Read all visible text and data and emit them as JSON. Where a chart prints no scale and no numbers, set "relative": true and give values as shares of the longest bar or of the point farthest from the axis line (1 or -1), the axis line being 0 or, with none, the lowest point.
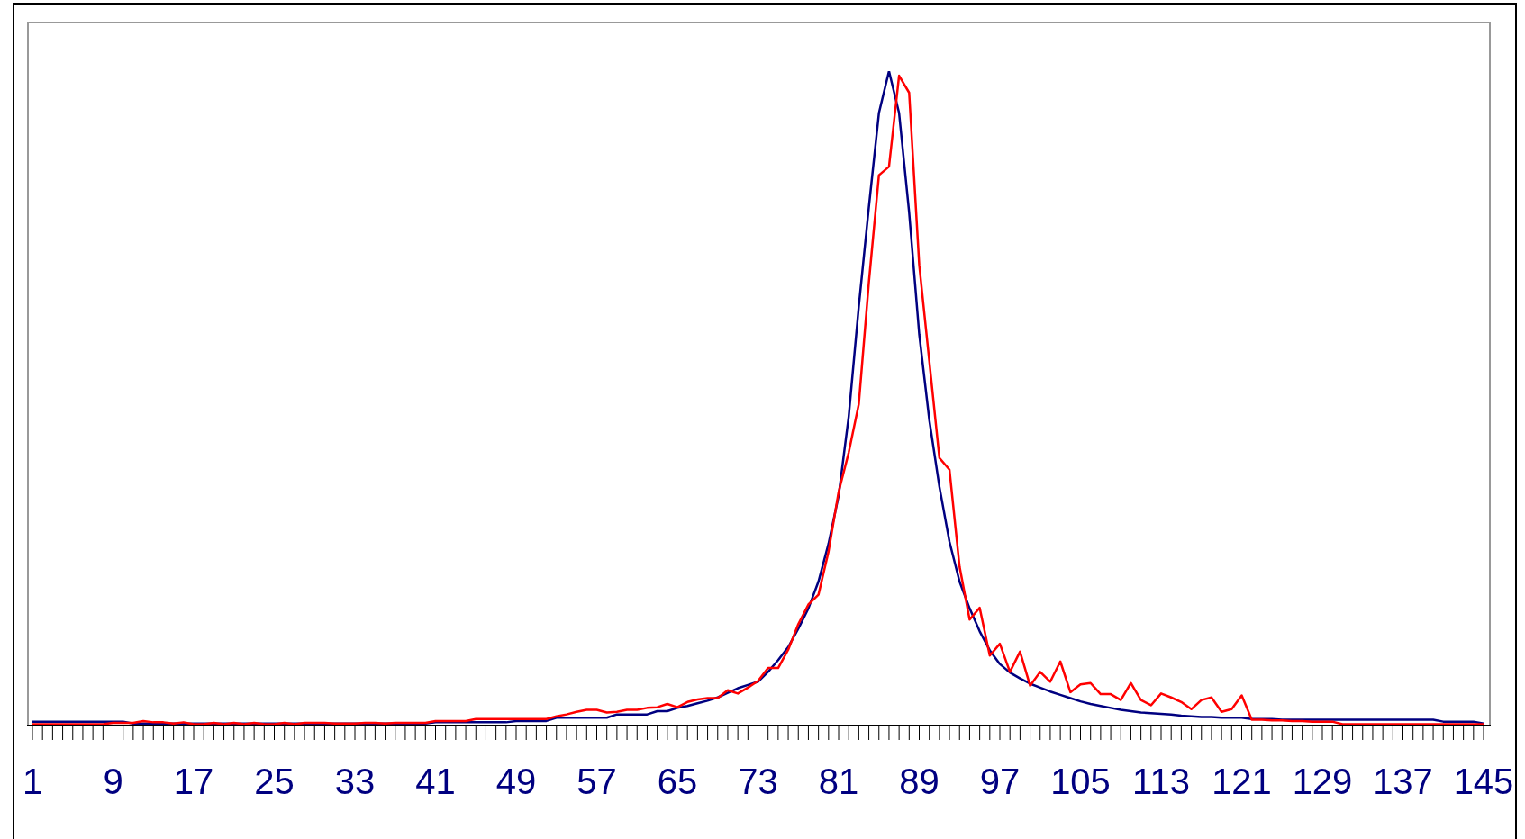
{
  "chart_data": {
    "type": "line",
    "relative": true,
    "marker": "none",
    "line_style": "solid",
    "categories": [
      "1",
      null,
      null,
      null,
      null,
      null,
      null,
      null,
      "9",
      null,
      null,
      null,
      null,
      null,
      null,
      null,
      "17",
      null,
      null,
      null,
      null,
      null,
      null,
      null,
      "25",
      null,
      null,
      null,
      null,
      null,
      null,
      null,
      "33",
      null,
      null,
      null,
      null,
      null,
      null,
      null,
      "41",
      null,
      null,
      null,
      null,
      null,
      null,
      null,
      "49",
      null,
      null,
      null,
      null,
      null,
      null,
      null,
      "57",
      null,
      null,
      null,
      null,
      null,
      null,
      null,
      "65",
      null,
      null,
      null,
      null,
      null,
      null,
      null,
      "73",
      null,
      null,
      null,
      null,
      null,
      null,
      null,
      "81",
      null,
      null,
      null,
      null,
      null,
      null,
      null,
      "89",
      null,
      null,
      null,
      null,
      null,
      null,
      null,
      "97",
      null,
      null,
      null,
      null,
      null,
      null,
      null,
      "105",
      null,
      null,
      null,
      null,
      null,
      null,
      null,
      "113",
      null,
      null,
      null,
      null,
      null,
      null,
      null,
      "121",
      null,
      null,
      null,
      null,
      null,
      null,
      null,
      "129",
      null,
      null,
      null,
      null,
      null,
      null,
      null,
      "137",
      null,
      null,
      null,
      null,
      null,
      null,
      null,
      "145"
    ],
    "series": [
      {
        "color": "#000080",
        "values": [
          0.006,
          0.006,
          0.006,
          0.006,
          0.006,
          0.006,
          0.006,
          0.006,
          0.006,
          0.006,
          0.003,
          0.003,
          0.003,
          0.003,
          0.003,
          0.003,
          0.003,
          0.003,
          0.003,
          0.003,
          0.003,
          0.003,
          0.003,
          0.003,
          0.003,
          0.003,
          0.003,
          0.003,
          0.003,
          0.003,
          0.003,
          0.003,
          0.003,
          0.003,
          0.003,
          0.003,
          0.003,
          0.003,
          0.003,
          0.003,
          0.005,
          0.005,
          0.005,
          0.005,
          0.005,
          0.005,
          0.005,
          0.005,
          0.007,
          0.007,
          0.007,
          0.007,
          0.012,
          0.012,
          0.012,
          0.012,
          0.012,
          0.012,
          0.017,
          0.017,
          0.017,
          0.017,
          0.022,
          0.022,
          0.027,
          0.03,
          0.034,
          0.038,
          0.043,
          0.05,
          0.057,
          0.062,
          0.067,
          0.082,
          0.1,
          0.12,
          0.148,
          0.179,
          0.22,
          0.278,
          0.351,
          0.472,
          0.64,
          0.792,
          0.936,
          1,
          0.936,
          0.784,
          0.598,
          0.467,
          0.365,
          0.281,
          0.22,
          0.179,
          0.144,
          0.115,
          0.094,
          0.081,
          0.072,
          0.064,
          0.058,
          0.052,
          0.047,
          0.042,
          0.037,
          0.033,
          0.03,
          0.027,
          0.024,
          0.022,
          0.02,
          0.019,
          0.018,
          0.017,
          0.015,
          0.014,
          0.013,
          0.013,
          0.012,
          0.012,
          0.012,
          0.01,
          0.01,
          0.01,
          0.009,
          0.009,
          0.009,
          0.009,
          0.009,
          0.009,
          0.009,
          0.009,
          0.009,
          0.009,
          0.009,
          0.009,
          0.009,
          0.009,
          0.009,
          0.009,
          0.006,
          0.006,
          0.006,
          0.006,
          0.003
        ]
      },
      {
        "color": "#ff0000",
        "values": [
          0.002,
          0.002,
          0.002,
          0.002,
          0.002,
          0.002,
          0.002,
          0.002,
          0.004,
          0.004,
          0.004,
          0.007,
          0.005,
          0.005,
          0.003,
          0.005,
          0.002,
          0.002,
          0.004,
          0.002,
          0.004,
          0.002,
          0.004,
          0.002,
          0.002,
          0.004,
          0.002,
          0.004,
          0.004,
          0.004,
          0.003,
          0.003,
          0.003,
          0.004,
          0.004,
          0.003,
          0.004,
          0.004,
          0.004,
          0.004,
          0.007,
          0.007,
          0.007,
          0.007,
          0.01,
          0.01,
          0.01,
          0.01,
          0.01,
          0.01,
          0.01,
          0.01,
          0.014,
          0.017,
          0.021,
          0.024,
          0.024,
          0.02,
          0.021,
          0.024,
          0.024,
          0.027,
          0.028,
          0.033,
          0.028,
          0.036,
          0.04,
          0.042,
          0.042,
          0.054,
          0.049,
          0.058,
          0.068,
          0.088,
          0.088,
          0.116,
          0.155,
          0.185,
          0.2,
          0.266,
          0.357,
          0.417,
          0.491,
          0.677,
          0.841,
          0.854,
          0.993,
          0.967,
          0.704,
          0.557,
          0.409,
          0.391,
          0.243,
          0.162,
          0.18,
          0.107,
          0.125,
          0.082,
          0.113,
          0.061,
          0.082,
          0.067,
          0.098,
          0.051,
          0.063,
          0.065,
          0.048,
          0.048,
          0.039,
          0.065,
          0.039,
          0.031,
          0.049,
          0.043,
          0.036,
          0.025,
          0.039,
          0.043,
          0.021,
          0.025,
          0.046,
          0.009,
          0.009,
          0.008,
          0.008,
          0.007,
          0.007,
          0.006,
          0.006,
          0.006,
          0.002,
          0.002,
          0.002,
          0.002,
          0.002,
          0.002,
          0.002,
          0.002,
          0.002,
          0.002,
          0.002,
          0.002,
          0.002,
          0.002,
          0.002
        ]
      }
    ]
  }
}
